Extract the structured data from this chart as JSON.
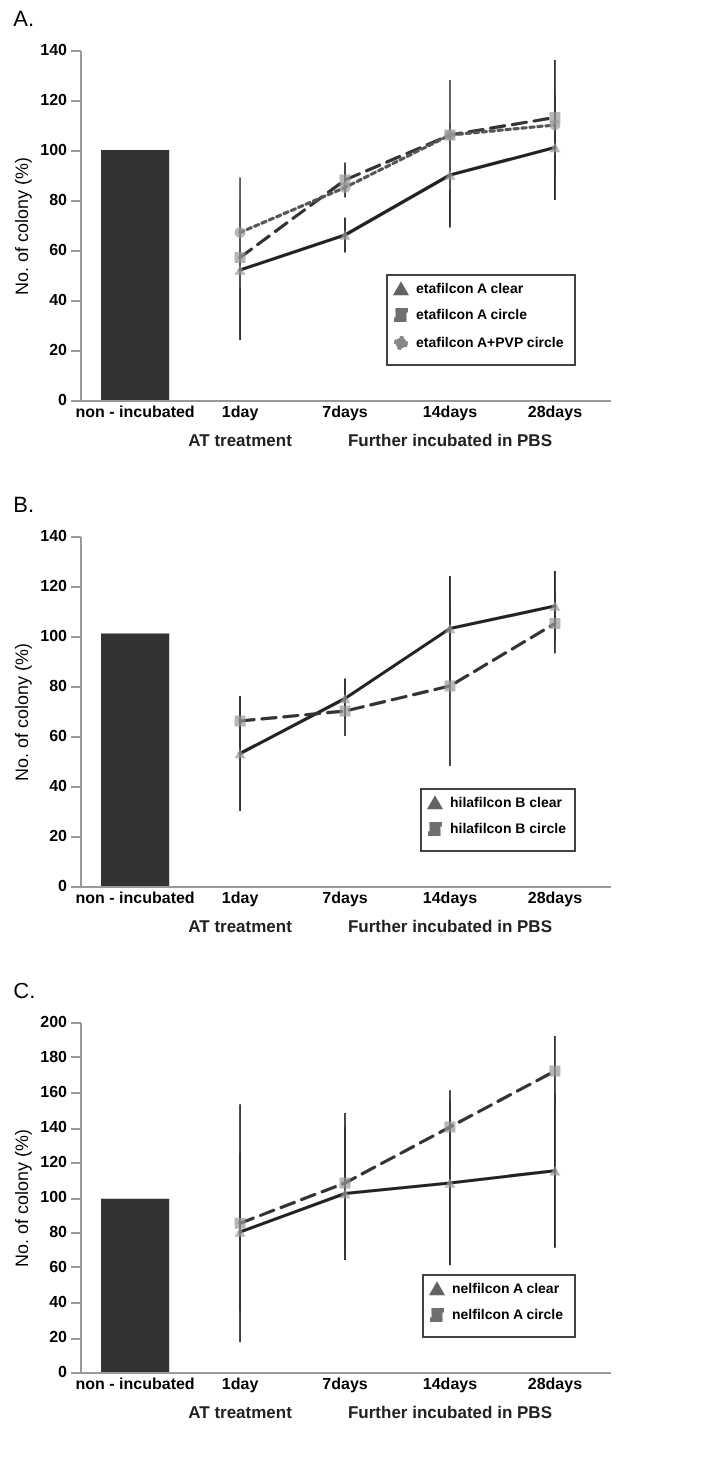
{
  "chart_data": [
    {
      "type": "line",
      "title": "A.",
      "ylabel": "No. of colony (%)",
      "categories": [
        "non - incubated",
        "1day",
        "7days",
        "14days",
        "28days"
      ],
      "ylim": [
        0,
        140
      ],
      "yticks": [
        0,
        20,
        40,
        60,
        80,
        100,
        120,
        140
      ],
      "legend": "bottom right",
      "annotations": [
        "AT treatment",
        "Further incubated in PBS"
      ],
      "series": [
        {
          "type": "bar",
          "color": "#333333",
          "values": [
            100,
            null,
            null,
            null,
            null
          ]
        },
        {
          "name": "etafilcon A clear",
          "color": "#222222",
          "marker": "triangle",
          "line_style": "solid",
          "values": [
            null,
            52,
            66,
            90,
            101
          ],
          "errors": [
            null,
            28,
            7,
            21,
            21
          ]
        },
        {
          "name": "etafilcon A circle",
          "color": "#333333",
          "marker": "square",
          "line_style": "dashed",
          "values": [
            null,
            57,
            88,
            106,
            113
          ],
          "errors": [
            null,
            null,
            7,
            null,
            23
          ]
        },
        {
          "name": "etafilcon A+PVP circle",
          "color": "#555555",
          "marker": "circle",
          "line_style": "dotted",
          "values": [
            null,
            67,
            85,
            106,
            110
          ],
          "errors": [
            null,
            22,
            null,
            22,
            null
          ]
        }
      ]
    },
    {
      "type": "line",
      "title": "B.",
      "ylabel": "No. of colony (%)",
      "categories": [
        "non - incubated",
        "1day",
        "7days",
        "14days",
        "28days"
      ],
      "ylim": [
        0,
        140
      ],
      "yticks": [
        0,
        20,
        40,
        60,
        80,
        100,
        120,
        140
      ],
      "legend": "bottom right",
      "annotations": [
        "AT treatment",
        "Further incubated in PBS"
      ],
      "series": [
        {
          "type": "bar",
          "color": "#333333",
          "values": [
            101,
            null,
            null,
            null,
            null
          ]
        },
        {
          "name": "hilafilcon B clear",
          "color": "#222222",
          "marker": "triangle",
          "line_style": "solid",
          "values": [
            null,
            53,
            75,
            103,
            112
          ],
          "errors": [
            null,
            23,
            8,
            21,
            14
          ]
        },
        {
          "name": "hilafilcon B circle",
          "color": "#333333",
          "marker": "square",
          "line_style": "dashed",
          "values": [
            null,
            66,
            70,
            80,
            105
          ],
          "errors": [
            null,
            10,
            10,
            32,
            12
          ]
        }
      ]
    },
    {
      "type": "line",
      "title": "C.",
      "ylabel": "No. of colony (%)",
      "categories": [
        "non - incubated",
        "1day",
        "7days",
        "14days",
        "28days"
      ],
      "ylim": [
        0,
        200
      ],
      "yticks": [
        0,
        20,
        40,
        60,
        80,
        100,
        120,
        140,
        160,
        180,
        200
      ],
      "legend": "bottom right",
      "annotations": [
        "AT treatment",
        "Further incubated in PBS"
      ],
      "series": [
        {
          "type": "bar",
          "color": "#333333",
          "values": [
            99,
            null,
            null,
            null,
            null
          ]
        },
        {
          "name": "nelfilcon A clear",
          "color": "#222222",
          "marker": "triangle",
          "line_style": "solid",
          "values": [
            null,
            80,
            102,
            108,
            115
          ],
          "errors": [
            null,
            45,
            38,
            47,
            44
          ]
        },
        {
          "name": "nelfilcon A circle",
          "color": "#333333",
          "marker": "square",
          "line_style": "dashed",
          "values": [
            null,
            85,
            108,
            140,
            172
          ],
          "errors": [
            null,
            68,
            40,
            21,
            20
          ]
        }
      ]
    }
  ]
}
